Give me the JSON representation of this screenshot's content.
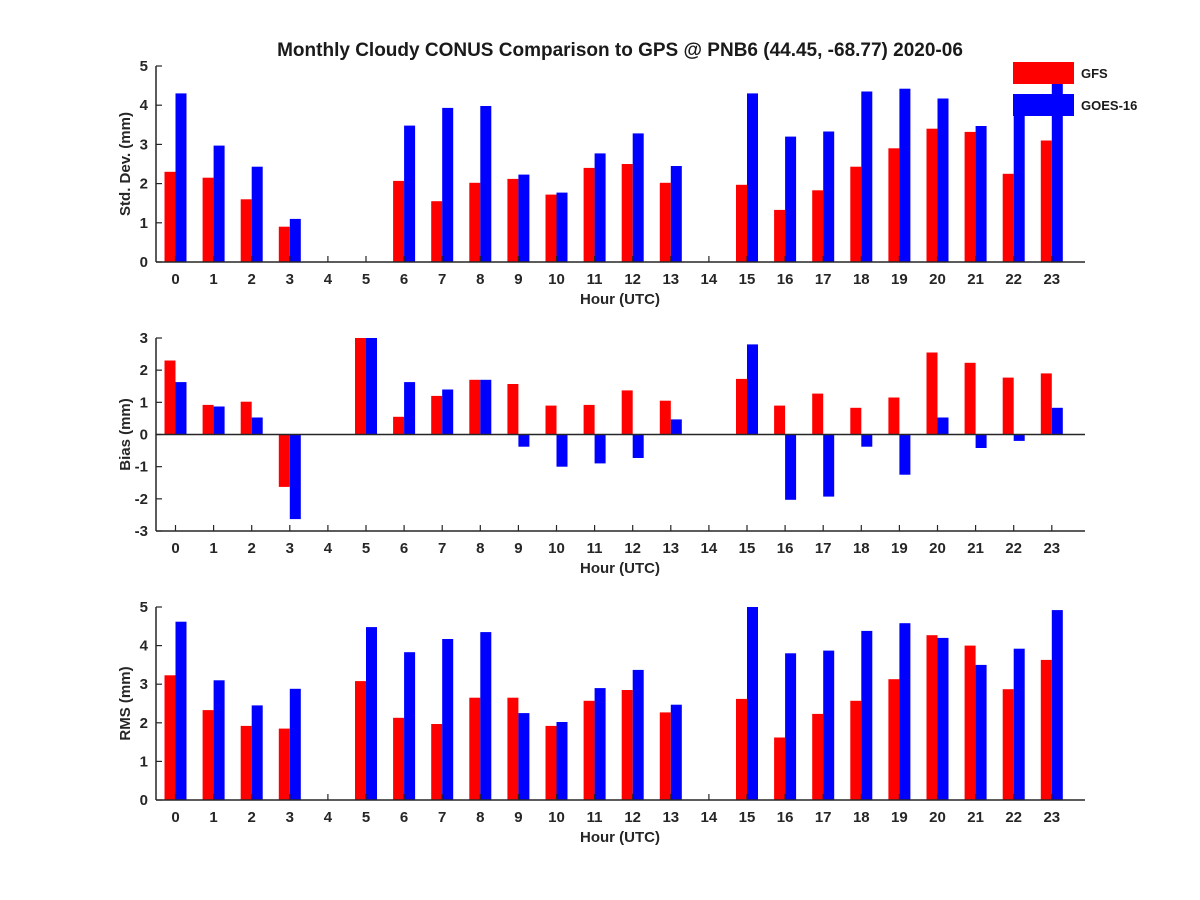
{
  "chart_data": {
    "type": "bar",
    "title": "Monthly Cloudy CONUS Comparison to GPS @ PNB6 (44.45, -68.77) 2020-06",
    "categories": [
      "0",
      "1",
      "2",
      "3",
      "4",
      "5",
      "6",
      "7",
      "8",
      "9",
      "10",
      "11",
      "12",
      "13",
      "14",
      "15",
      "16",
      "17",
      "18",
      "19",
      "20",
      "21",
      "22",
      "23"
    ],
    "legend": [
      {
        "name": "GFS",
        "color": "#ff0000"
      },
      {
        "name": "GOES-16",
        "color": "#0000ff"
      }
    ],
    "legend_position": "top-right",
    "panels": [
      {
        "id": "std",
        "ylabel": "Std. Dev. (mm)",
        "xlabel": "Hour (UTC)",
        "ylim": [
          0,
          5
        ],
        "yticks": [
          "0",
          "1",
          "2",
          "3",
          "4",
          "5"
        ],
        "series": [
          {
            "name": "GFS",
            "values": [
              2.3,
              2.15,
              1.6,
              0.9,
              null,
              null,
              2.07,
              1.55,
              2.02,
              2.12,
              1.72,
              2.4,
              2.5,
              2.02,
              null,
              1.97,
              1.33,
              1.83,
              2.43,
              2.9,
              3.4,
              3.32,
              2.25,
              3.1
            ]
          },
          {
            "name": "GOES-16",
            "values": [
              4.3,
              2.97,
              2.43,
              1.1,
              null,
              null,
              3.48,
              3.93,
              3.98,
              2.23,
              1.77,
              2.77,
              3.28,
              2.45,
              null,
              4.3,
              3.2,
              3.33,
              4.35,
              4.42,
              4.17,
              3.47,
              3.9,
              4.6
            ]
          }
        ]
      },
      {
        "id": "bias",
        "ylabel": "Bias (mm)",
        "xlabel": "Hour (UTC)",
        "ylim": [
          -3,
          3
        ],
        "yticks": [
          "-3",
          "-2",
          "-1",
          "0",
          "1",
          "2",
          "3"
        ],
        "series": [
          {
            "name": "GFS",
            "values": [
              2.3,
              0.92,
              1.02,
              -1.63,
              null,
              3.0,
              0.55,
              1.2,
              1.7,
              1.57,
              0.9,
              0.92,
              1.37,
              1.05,
              null,
              1.73,
              0.9,
              1.27,
              0.83,
              1.15,
              2.55,
              2.23,
              1.77,
              1.9
            ]
          },
          {
            "name": "GOES-16",
            "values": [
              1.63,
              0.87,
              0.53,
              -2.63,
              null,
              3.0,
              1.63,
              1.4,
              1.7,
              -0.38,
              -1.0,
              -0.9,
              -0.73,
              0.47,
              null,
              2.8,
              -2.03,
              -1.93,
              -0.38,
              -1.25,
              0.53,
              -0.42,
              -0.2,
              0.83
            ]
          }
        ]
      },
      {
        "id": "rms",
        "ylabel": "RMS (mm)",
        "xlabel": "Hour (UTC)",
        "ylim": [
          0,
          5
        ],
        "yticks": [
          "0",
          "1",
          "2",
          "3",
          "4",
          "5"
        ],
        "series": [
          {
            "name": "GFS",
            "values": [
              3.23,
              2.33,
              1.92,
              1.85,
              null,
              3.08,
              2.13,
              1.97,
              2.65,
              2.65,
              1.92,
              2.57,
              2.85,
              2.27,
              null,
              2.62,
              1.62,
              2.23,
              2.57,
              3.13,
              4.27,
              4.0,
              2.87,
              3.63
            ]
          },
          {
            "name": "GOES-16",
            "values": [
              4.62,
              3.1,
              2.45,
              2.88,
              null,
              4.48,
              3.83,
              4.17,
              4.35,
              2.25,
              2.02,
              2.9,
              3.37,
              2.47,
              null,
              5.0,
              3.8,
              3.87,
              4.38,
              4.58,
              4.2,
              3.5,
              3.92,
              4.92
            ]
          }
        ]
      }
    ]
  }
}
